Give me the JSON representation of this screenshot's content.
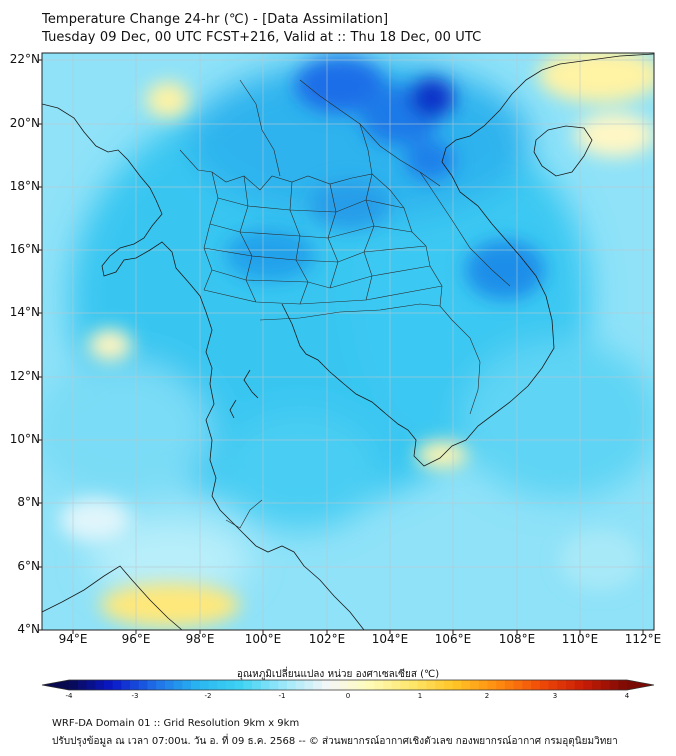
{
  "title": {
    "line1": "Temperature Change 24-hr (℃) - [Data Assimilation]",
    "line2": "Tuesday 09 Dec, 00 UTC FCST+216, Valid at :: Thu 18 Dec, 00 UTC"
  },
  "axes": {
    "lat_labels": [
      "22°N",
      "20°N",
      "18°N",
      "16°N",
      "14°N",
      "12°N",
      "10°N",
      "8°N",
      "6°N",
      "4°N"
    ],
    "lon_labels": [
      "94°E",
      "96°E",
      "98°E",
      "100°E",
      "102°E",
      "104°E",
      "106°E",
      "108°E",
      "110°E",
      "112°E"
    ]
  },
  "colorbar": {
    "label": "อุณหภูมิเปลี่ยนแปลง หน่วย องศาเซลเซียส (℃)",
    "ticks": [
      "-4",
      "-3",
      "-2",
      "-1",
      "0",
      "1",
      "2",
      "3",
      "4"
    ],
    "min": -4,
    "max": 4,
    "colors": [
      "#08084f",
      "#0a18c8",
      "#1f6ee8",
      "#29b6f0",
      "#3fd2f4",
      "#9ce8fa",
      "#f2f6f8",
      "#fffbb8",
      "#ffe66a",
      "#ffc425",
      "#ff8a10",
      "#f04a08",
      "#c81c06",
      "#7a0a04"
    ]
  },
  "footer": {
    "line1": "WRF-DA Domain 01 :: Grid Resolution 9km x 9km",
    "line2": "ปรับปรุงข้อมูล ณ เวลา 07:00น. วัน อ. ที่ 09 ธ.ค. 2568 -- © ส่วนพยากรณ์อากาศเชิงตัวเลข กองพยากรณ์อากาศ กรมอุตุนิยมวิทยา"
  }
}
